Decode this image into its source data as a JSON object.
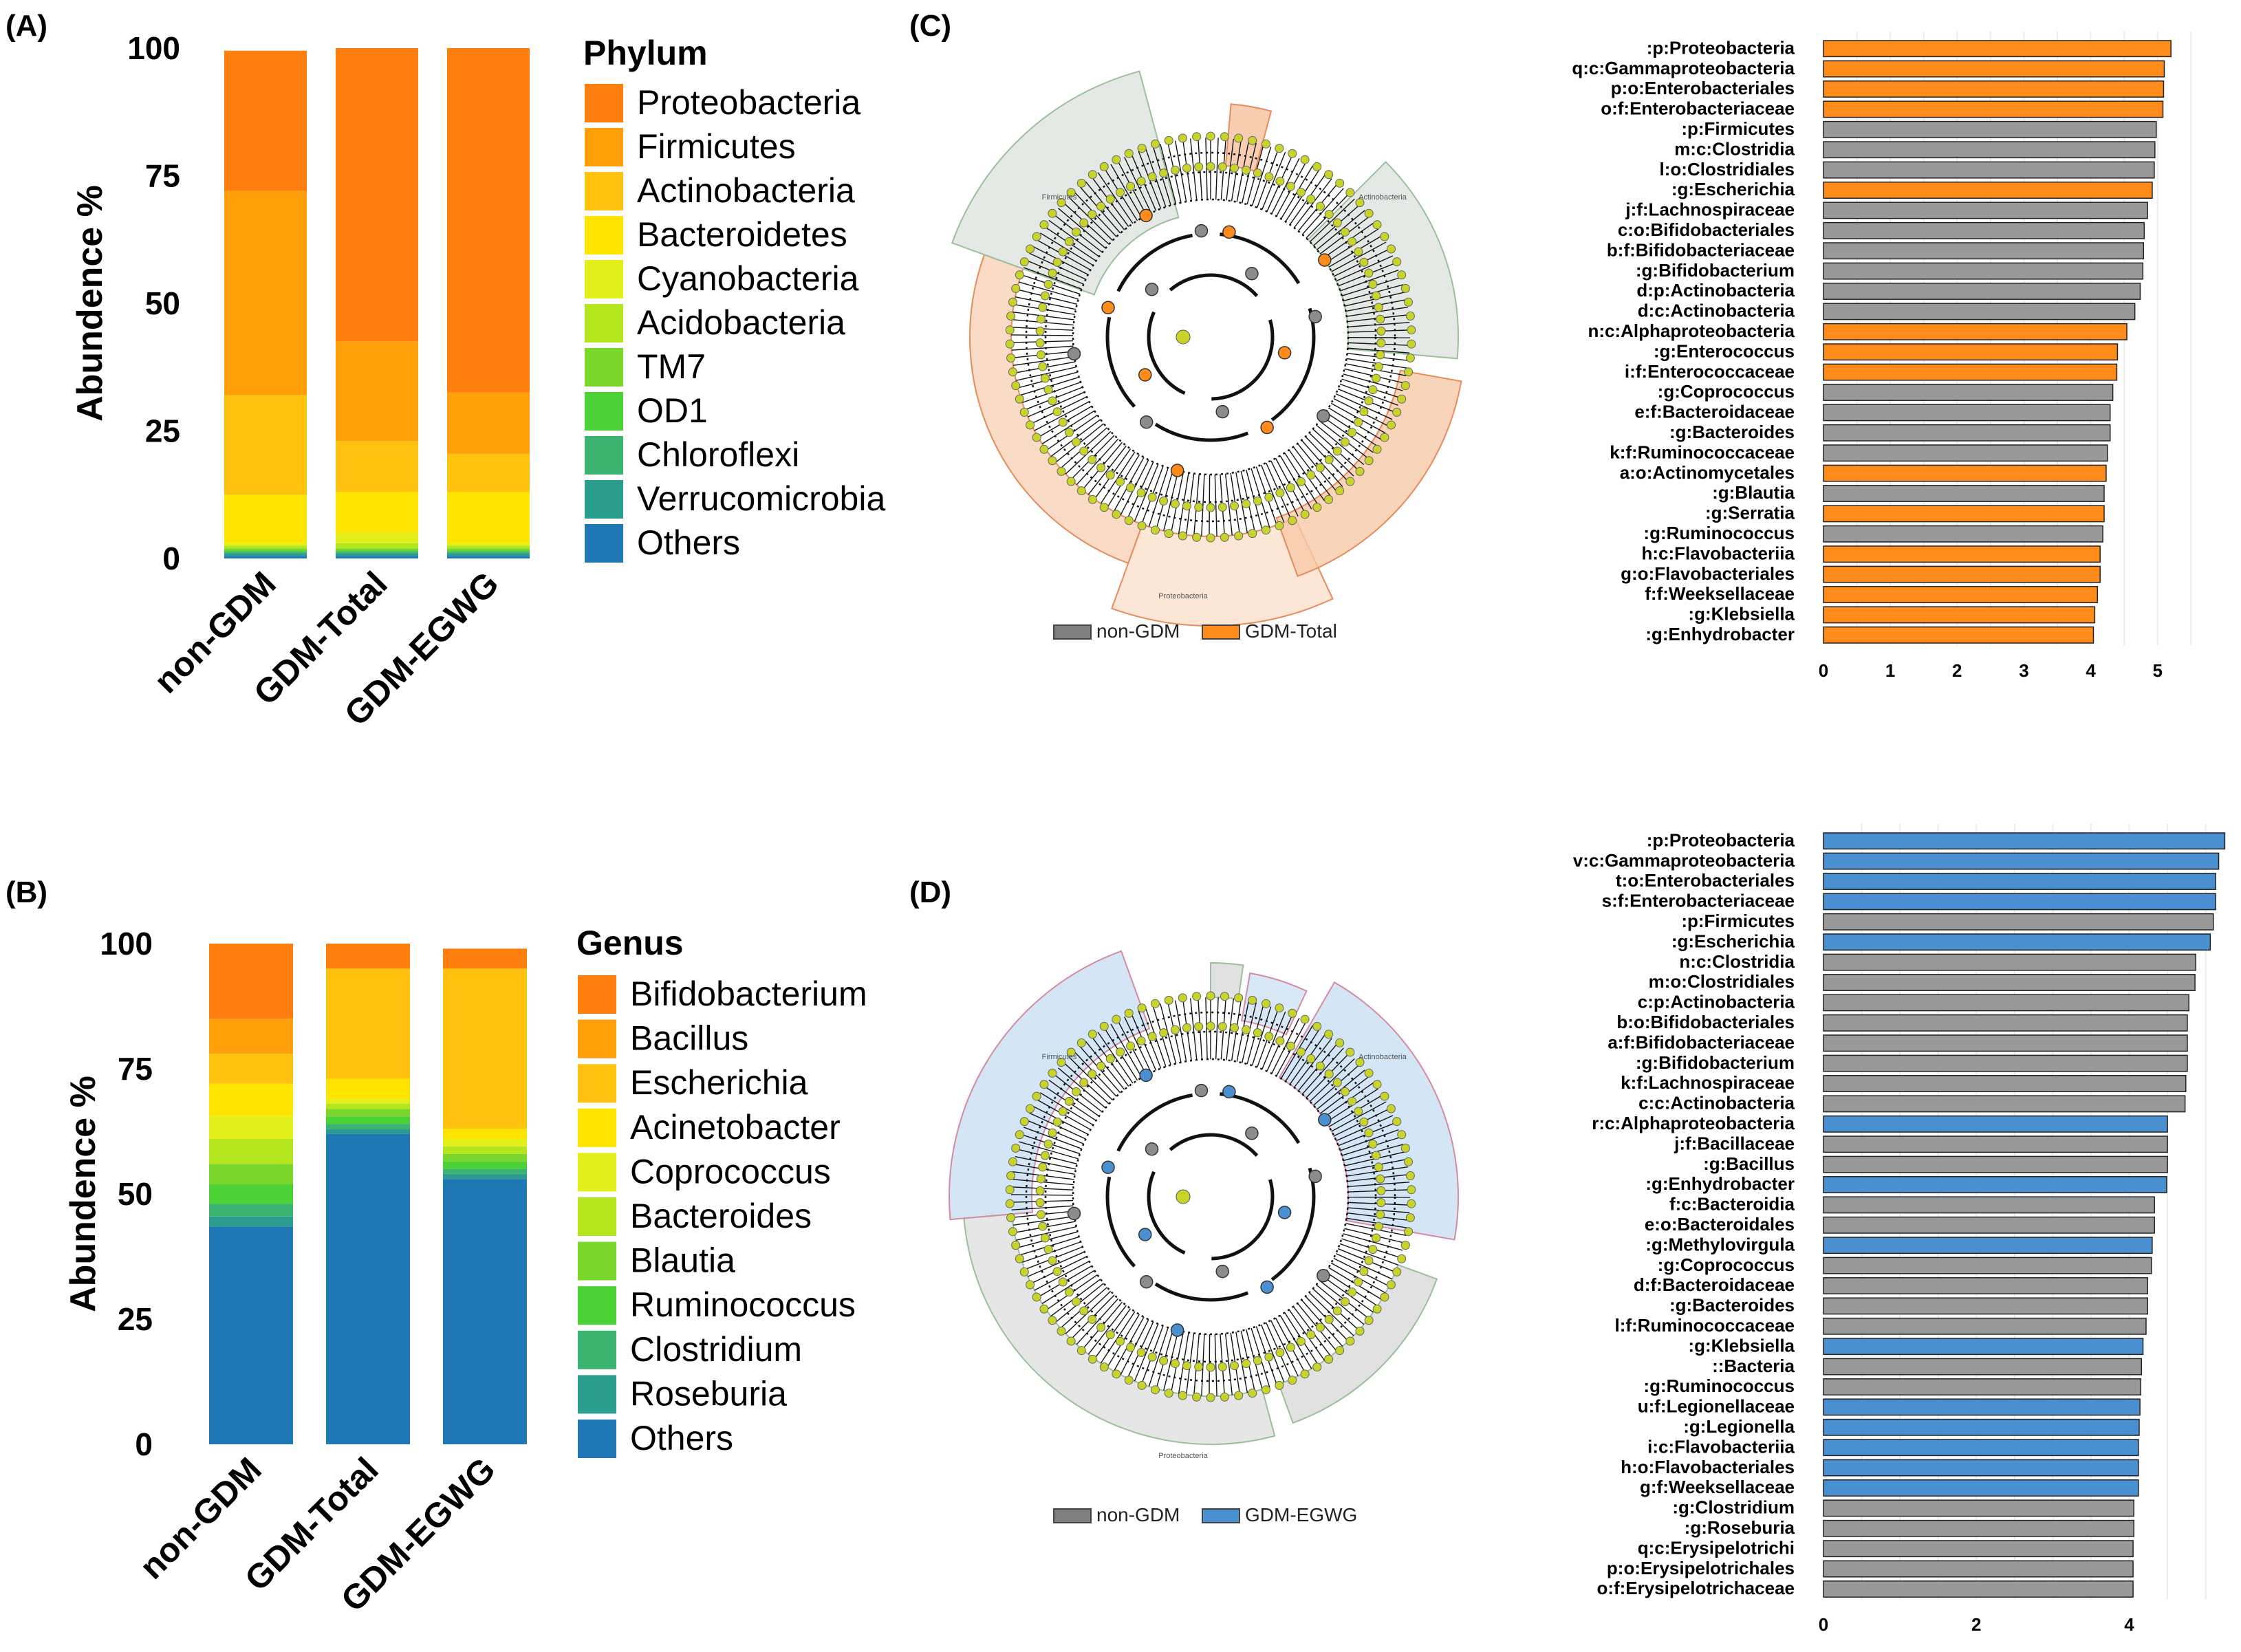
{
  "panels": {
    "a": "(A)",
    "b": "(B)",
    "c": "(C)",
    "d": "(D)"
  },
  "colors": {
    "orange": "#ff8c1a",
    "blue": "#4a90d0",
    "gray": "#999999"
  },
  "chart_data": [
    {
      "id": "A",
      "type": "bar",
      "stacked": true,
      "ylabel": "Abundence %",
      "ylim": [
        0,
        100
      ],
      "yticks": [
        0,
        25,
        50,
        75,
        100
      ],
      "categories": [
        "non-GDM",
        "GDM-Total",
        "GDM-EGWG"
      ],
      "legend_title": "Phylum",
      "series": [
        {
          "name": "Others",
          "color": "#1f77b4",
          "values": [
            0.5,
            0.5,
            0.5
          ]
        },
        {
          "name": "Verrucomicrobia",
          "color": "#2a9d8f",
          "values": [
            0.5,
            0.5,
            0.5
          ]
        },
        {
          "name": "Chloroflexi",
          "color": "#3cb371",
          "values": [
            0.3,
            0.3,
            0.3
          ]
        },
        {
          "name": "OD1",
          "color": "#4cd137",
          "values": [
            0.3,
            0.3,
            0.3
          ]
        },
        {
          "name": "TM7",
          "color": "#7bd62b",
          "values": [
            0.4,
            0.4,
            0.4
          ]
        },
        {
          "name": "Acidobacteria",
          "color": "#b5e61d",
          "values": [
            0.5,
            1,
            0.5
          ]
        },
        {
          "name": "Cyanobacteria",
          "color": "#e2ef1a",
          "values": [
            0.5,
            2,
            0.5
          ]
        },
        {
          "name": "Bacteroidetes",
          "color": "#ffe400",
          "values": [
            9.5,
            8,
            10
          ]
        },
        {
          "name": "Actinobacteria",
          "color": "#ffc20e",
          "values": [
            19.5,
            10,
            7.5
          ]
        },
        {
          "name": "Firmicutes",
          "color": "#ffa00a",
          "values": [
            40,
            19.5,
            12
          ]
        },
        {
          "name": "Proteobacteria",
          "color": "#ff7f0e",
          "values": [
            27.5,
            57.5,
            67.5
          ]
        }
      ]
    },
    {
      "id": "B",
      "type": "bar",
      "stacked": true,
      "ylabel": "Abundence %",
      "ylim": [
        0,
        100
      ],
      "yticks": [
        0,
        25,
        50,
        75,
        100
      ],
      "categories": [
        "non-GDM",
        "GDM-Total",
        "GDM-EGWG"
      ],
      "legend_title": "Genus",
      "series": [
        {
          "name": "Others",
          "color": "#1f77b4",
          "values": [
            43.5,
            62,
            53
          ]
        },
        {
          "name": "Roseburia",
          "color": "#2a9d8f",
          "values": [
            2,
            1,
            1
          ]
        },
        {
          "name": "Clostridium",
          "color": "#3cb371",
          "values": [
            2.5,
            1,
            1
          ]
        },
        {
          "name": "Ruminococcus",
          "color": "#4cd137",
          "values": [
            4,
            1.5,
            1.5
          ]
        },
        {
          "name": "Blautia",
          "color": "#7bd62b",
          "values": [
            4,
            1.5,
            1.5
          ]
        },
        {
          "name": "Bacteroides",
          "color": "#b5e61d",
          "values": [
            5,
            1,
            1.5
          ]
        },
        {
          "name": "Coprococcus",
          "color": "#e2ef1a",
          "values": [
            4.5,
            1,
            1.5
          ]
        },
        {
          "name": "Acinetobacter",
          "color": "#ffe400",
          "values": [
            6.5,
            4,
            2
          ]
        },
        {
          "name": "Escherichia",
          "color": "#ffc20e",
          "values": [
            6,
            22,
            32
          ]
        },
        {
          "name": "Bacillus",
          "color": "#ffa00a",
          "values": [
            7,
            0,
            0
          ]
        },
        {
          "name": "Bifidobacterium",
          "color": "#ff7f0e",
          "values": [
            15,
            5,
            4
          ]
        }
      ]
    },
    {
      "id": "C",
      "type": "bar",
      "orientation": "horizontal",
      "xlim": [
        0,
        5.6
      ],
      "xticks": [
        0,
        1,
        2,
        3,
        4,
        5
      ],
      "legend": [
        "non-GDM",
        "GDM-Total"
      ],
      "categories": [
        ":p:Proteobacteria",
        "q:c:Gammaproteobacteria",
        "p:o:Enterobacteriales",
        "o:f:Enterobacteriaceae",
        ":p:Firmicutes",
        "m:c:Clostridia",
        "l:o:Clostridiales",
        ":g:Escherichia",
        "j:f:Lachnospiraceae",
        "c:o:Bifidobacteriales",
        "b:f:Bifidobacteriaceae",
        ":g:Bifidobacterium",
        "d:p:Actinobacteria",
        "d:c:Actinobacteria",
        "n:c:Alphaproteobacteria",
        ":g:Enterococcus",
        "i:f:Enterococcaceae",
        ":g:Coprococcus",
        "e:f:Bacteroidaceae",
        ":g:Bacteroides",
        "k:f:Ruminococcaceae",
        "a:o:Actinomycetales",
        ":g:Blautia",
        ":g:Serratia",
        ":g:Ruminococcus",
        "h:c:Flavobacteriia",
        "g:o:Flavobacteriales",
        "f:f:Weeksellaceae",
        ":g:Klebsiella",
        ":g:Enhydrobacter"
      ],
      "values": [
        5.2,
        5.1,
        5.09,
        5.08,
        4.98,
        4.96,
        4.95,
        4.92,
        4.85,
        4.8,
        4.79,
        4.78,
        4.74,
        4.66,
        4.54,
        4.4,
        4.39,
        4.33,
        4.29,
        4.29,
        4.25,
        4.23,
        4.2,
        4.2,
        4.18,
        4.14,
        4.14,
        4.1,
        4.06,
        4.04
      ],
      "groups": [
        "GDM-Total",
        "GDM-Total",
        "GDM-Total",
        "GDM-Total",
        "non-GDM",
        "non-GDM",
        "non-GDM",
        "GDM-Total",
        "non-GDM",
        "non-GDM",
        "non-GDM",
        "non-GDM",
        "non-GDM",
        "non-GDM",
        "GDM-Total",
        "GDM-Total",
        "GDM-Total",
        "non-GDM",
        "non-GDM",
        "non-GDM",
        "non-GDM",
        "GDM-Total",
        "non-GDM",
        "GDM-Total",
        "non-GDM",
        "GDM-Total",
        "GDM-Total",
        "GDM-Total",
        "GDM-Total",
        "GDM-Total"
      ]
    },
    {
      "id": "D",
      "type": "bar",
      "orientation": "horizontal",
      "xlim": [
        0,
        5.3
      ],
      "xticks": [
        0,
        2,
        4
      ],
      "legend": [
        "non-GDM",
        "GDM-EGWG"
      ],
      "categories": [
        ":p:Proteobacteria",
        "v:c:Gammaproteobacteria",
        "t:o:Enterobacteriales",
        "s:f:Enterobacteriaceae",
        ":p:Firmicutes",
        ":g:Escherichia",
        "n:c:Clostridia",
        "m:o:Clostridiales",
        "c:p:Actinobacteria",
        "b:o:Bifidobacteriales",
        "a:f:Bifidobacteriaceae",
        ":g:Bifidobacterium",
        "k:f:Lachnospiraceae",
        "c:c:Actinobacteria",
        "r:c:Alphaproteobacteria",
        "j:f:Bacillaceae",
        ":g:Bacillus",
        ":g:Enhydrobacter",
        "f:c:Bacteroidia",
        "e:o:Bacteroidales",
        ":g:Methylovirgula",
        ":g:Coprococcus",
        "d:f:Bacteroidaceae",
        ":g:Bacteroides",
        "l:f:Ruminococcaceae",
        ":g:Klebsiella",
        "::Bacteria",
        ":g:Ruminococcus",
        "u:f:Legionellaceae",
        ":g:Legionella",
        "i:c:Flavobacteriia",
        "h:o:Flavobacteriales",
        "g:f:Weeksellaceae",
        ":g:Clostridium",
        ":g:Roseburia",
        "q:c:Erysipelotrichi",
        "p:o:Erysipelotrichales",
        "o:f:Erysipelotrichaceae"
      ],
      "values": [
        5.25,
        5.17,
        5.13,
        5.13,
        5.1,
        5.06,
        4.87,
        4.86,
        4.78,
        4.76,
        4.76,
        4.76,
        4.74,
        4.73,
        4.5,
        4.5,
        4.5,
        4.49,
        4.33,
        4.33,
        4.3,
        4.29,
        4.24,
        4.24,
        4.22,
        4.18,
        4.16,
        4.15,
        4.14,
        4.13,
        4.12,
        4.12,
        4.12,
        4.06,
        4.06,
        4.05,
        4.05,
        4.05
      ],
      "groups": [
        "GDM-EGWG",
        "GDM-EGWG",
        "GDM-EGWG",
        "GDM-EGWG",
        "non-GDM",
        "GDM-EGWG",
        "non-GDM",
        "non-GDM",
        "non-GDM",
        "non-GDM",
        "non-GDM",
        "non-GDM",
        "non-GDM",
        "non-GDM",
        "GDM-EGWG",
        "non-GDM",
        "non-GDM",
        "GDM-EGWG",
        "non-GDM",
        "non-GDM",
        "GDM-EGWG",
        "non-GDM",
        "non-GDM",
        "non-GDM",
        "non-GDM",
        "GDM-EGWG",
        "non-GDM",
        "non-GDM",
        "GDM-EGWG",
        "GDM-EGWG",
        "GDM-EGWG",
        "GDM-EGWG",
        "GDM-EGWG",
        "non-GDM",
        "non-GDM",
        "non-GDM",
        "non-GDM",
        "non-GDM"
      ]
    }
  ],
  "cladograms": {
    "c": {
      "legend": [
        "non-GDM",
        "GDM-Total"
      ],
      "sector_labels": [
        "Firmicutes",
        "Actinobacteria",
        "Proteobacteria"
      ]
    },
    "d": {
      "legend": [
        "non-GDM",
        "GDM-EGWG"
      ],
      "sector_labels": [
        "Firmicutes",
        "Actinobacteria",
        "Proteobacteria"
      ]
    }
  }
}
